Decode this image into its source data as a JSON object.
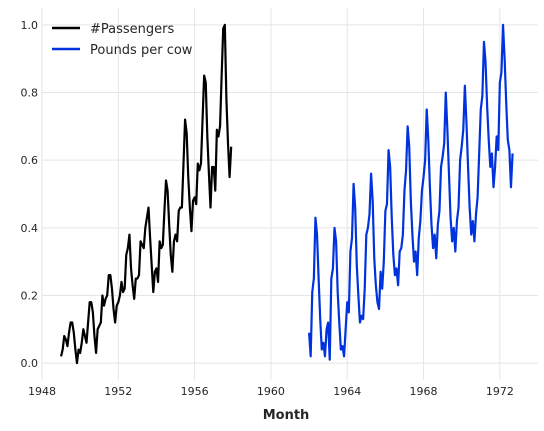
{
  "chart_data": {
    "type": "line",
    "title": "",
    "xlabel": "Month",
    "ylabel": "",
    "xlim": [
      1948,
      1974
    ],
    "ylim": [
      -0.05,
      1.05
    ],
    "x_ticks": [
      "1948",
      "1952",
      "1956",
      "1960",
      "1964",
      "1968",
      "1972"
    ],
    "y_ticks": [
      "0.0",
      "0.2",
      "0.4",
      "0.6",
      "0.8",
      "1.0"
    ],
    "grid": true,
    "legend_position": "top-left",
    "series": [
      {
        "name": "#Passengers",
        "color": "#000000",
        "x_start": 1949.0,
        "step": 0.0833333,
        "values": [
          0.02,
          0.04,
          0.08,
          0.07,
          0.05,
          0.09,
          0.12,
          0.12,
          0.09,
          0.04,
          0.0,
          0.04,
          0.03,
          0.06,
          0.1,
          0.08,
          0.06,
          0.12,
          0.18,
          0.18,
          0.15,
          0.08,
          0.03,
          0.1,
          0.11,
          0.12,
          0.2,
          0.17,
          0.19,
          0.2,
          0.26,
          0.26,
          0.22,
          0.16,
          0.12,
          0.17,
          0.18,
          0.2,
          0.24,
          0.21,
          0.22,
          0.32,
          0.34,
          0.38,
          0.28,
          0.23,
          0.19,
          0.25,
          0.25,
          0.26,
          0.36,
          0.35,
          0.34,
          0.4,
          0.43,
          0.46,
          0.37,
          0.29,
          0.21,
          0.27,
          0.28,
          0.24,
          0.36,
          0.34,
          0.35,
          0.45,
          0.54,
          0.51,
          0.41,
          0.32,
          0.27,
          0.36,
          0.38,
          0.36,
          0.45,
          0.46,
          0.46,
          0.59,
          0.72,
          0.68,
          0.55,
          0.46,
          0.39,
          0.48,
          0.49,
          0.47,
          0.59,
          0.57,
          0.59,
          0.72,
          0.85,
          0.83,
          0.67,
          0.56,
          0.46,
          0.58,
          0.58,
          0.51,
          0.69,
          0.67,
          0.7,
          0.85,
          0.99,
          1.0,
          0.78,
          0.65,
          0.55,
          0.64
        ]
      },
      {
        "name": "Pounds per cow",
        "color": "#0033dd",
        "x_start": 1962.0,
        "step": 0.0833333,
        "values": [
          0.09,
          0.02,
          0.21,
          0.25,
          0.43,
          0.38,
          0.25,
          0.13,
          0.04,
          0.06,
          0.02,
          0.1,
          0.12,
          0.01,
          0.25,
          0.28,
          0.4,
          0.36,
          0.21,
          0.12,
          0.04,
          0.05,
          0.02,
          0.1,
          0.18,
          0.15,
          0.33,
          0.37,
          0.53,
          0.46,
          0.29,
          0.2,
          0.12,
          0.14,
          0.13,
          0.22,
          0.38,
          0.4,
          0.44,
          0.56,
          0.48,
          0.31,
          0.23,
          0.18,
          0.16,
          0.27,
          0.22,
          0.3,
          0.45,
          0.47,
          0.63,
          0.58,
          0.43,
          0.32,
          0.26,
          0.28,
          0.23,
          0.33,
          0.34,
          0.38,
          0.51,
          0.57,
          0.7,
          0.64,
          0.48,
          0.38,
          0.3,
          0.33,
          0.26,
          0.37,
          0.42,
          0.51,
          0.55,
          0.6,
          0.75,
          0.66,
          0.52,
          0.41,
          0.34,
          0.38,
          0.31,
          0.41,
          0.45,
          0.58,
          0.61,
          0.65,
          0.8,
          0.69,
          0.56,
          0.43,
          0.36,
          0.4,
          0.33,
          0.42,
          0.46,
          0.6,
          0.64,
          0.69,
          0.82,
          0.71,
          0.58,
          0.46,
          0.38,
          0.42,
          0.36,
          0.44,
          0.49,
          0.62,
          0.75,
          0.79,
          0.95,
          0.89,
          0.76,
          0.66,
          0.58,
          0.62,
          0.52,
          0.58,
          0.67,
          0.63,
          0.83,
          0.86,
          1.0,
          0.9,
          0.77,
          0.66,
          0.63,
          0.52,
          0.62
        ]
      }
    ]
  }
}
